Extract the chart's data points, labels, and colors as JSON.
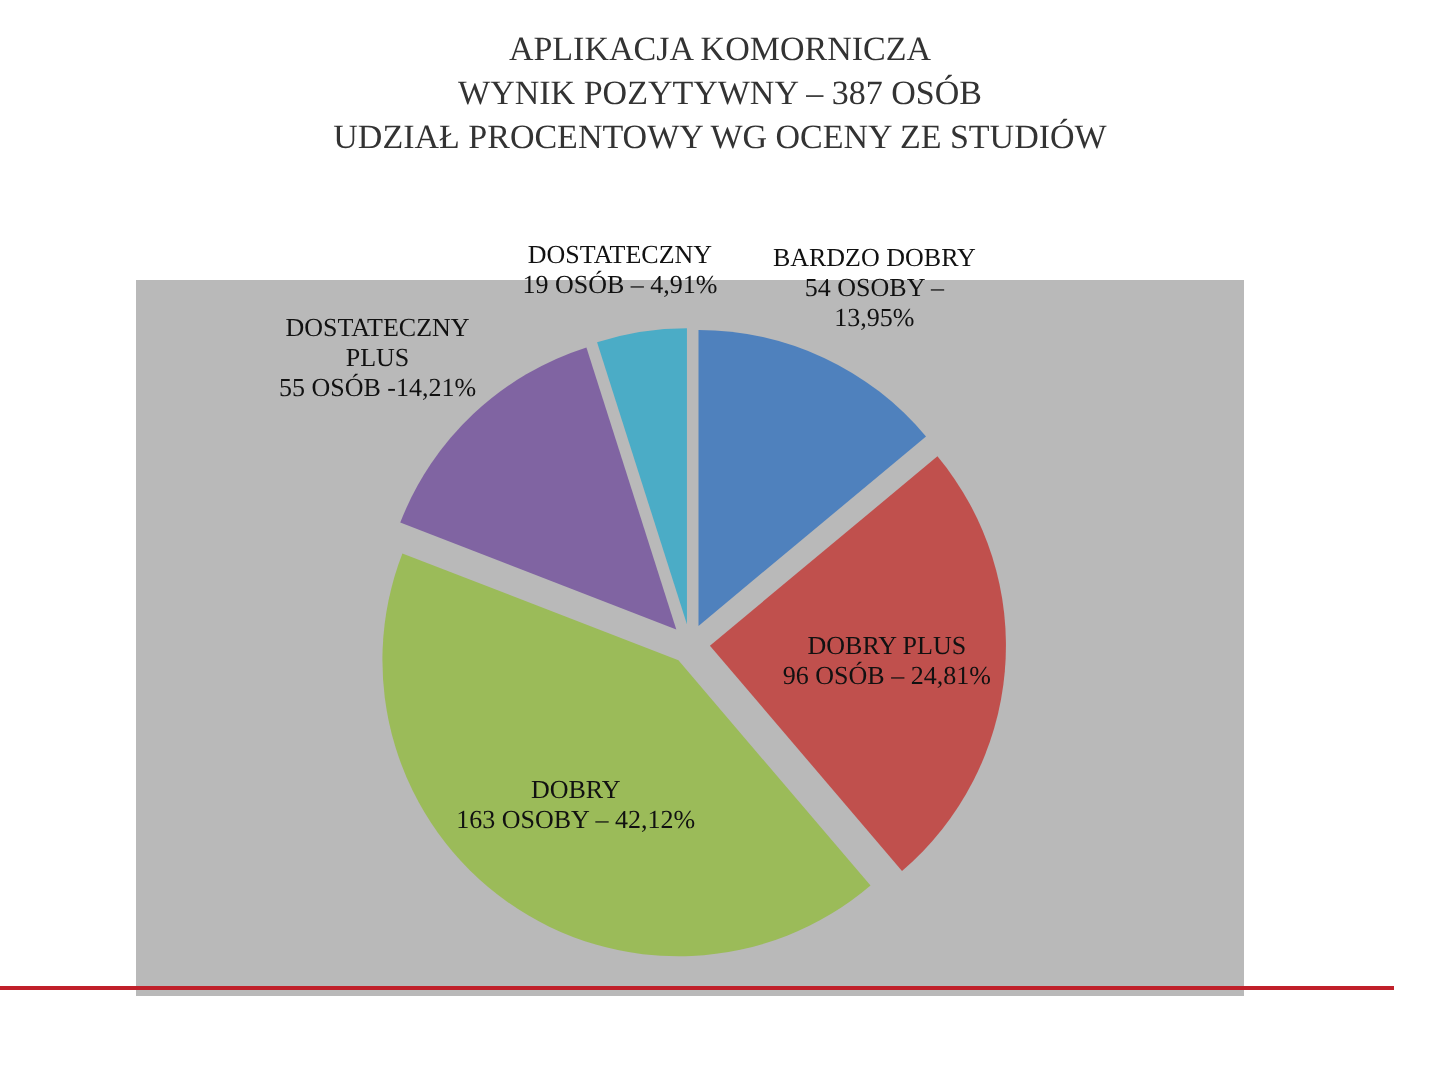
{
  "chart_data": {
    "type": "pie",
    "title": "APLIKACJA KOMORNICZA\nWYNIK POZYTYWNY – 387 OSÓB\nUDZIAŁ PROCENTOWY WG OCENY ZE STUDIÓW",
    "categories": [
      "BARDZO DOBRY",
      "DOBRY PLUS",
      "DOBRY",
      "DOSTATECZNY PLUS",
      "DOSTATECZNY"
    ],
    "values": [
      54,
      96,
      163,
      55,
      19
    ],
    "colors": [
      "#4f81bd",
      "#c0504d",
      "#9bbb59",
      "#8064a2",
      "#4bacc6"
    ],
    "value_labels": [
      "54 OSOBY – 13,95%",
      "96 OSÓB – 24,81%",
      "163 OSOBY – 42,12%",
      "55 OSÓB -14,21%",
      "19 OSÓB – 4,91%"
    ]
  }
}
